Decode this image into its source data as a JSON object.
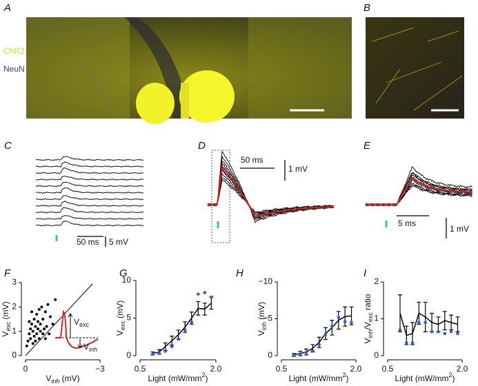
{
  "panels": [
    "A",
    "B",
    "C",
    "D",
    "E"
  ],
  "image_labels": [
    "ChR2",
    "NeuN"
  ],
  "scale_bars": {
    "C": [
      "50 ms",
      "5 mV"
    ],
    "D": [
      "50 ms",
      "1 mV"
    ],
    "E": [
      "5 ms",
      "1 mV"
    ]
  },
  "chart_data": [
    {
      "type": "scatter",
      "label": "F",
      "xlabel": [
        {
          "text": "V"
        },
        {
          "text": "inh",
          "sub": true
        },
        {
          "text": " (mV)"
        }
      ],
      "ylabel": [
        {
          "text": "V"
        },
        {
          "text": "exc",
          "sub": true
        },
        {
          "text": " (mV)"
        }
      ],
      "xlim": [
        0,
        -3
      ],
      "ylim": [
        0,
        3
      ],
      "xticks": [
        0,
        {
          "value": -3,
          "label": "−3"
        }
      ],
      "yticks": [
        0,
        1,
        2,
        3
      ],
      "color": "#000000",
      "x": [
        -0.1,
        -0.15,
        -0.2,
        -0.2,
        -0.25,
        -0.3,
        -0.3,
        -0.35,
        -0.35,
        -0.4,
        -0.4,
        -0.45,
        -0.45,
        -0.5,
        -0.5,
        -0.55,
        -0.6,
        -0.6,
        -0.65,
        -0.7,
        -0.7,
        -0.75,
        -0.8,
        -0.85,
        -0.9,
        -0.95,
        -1.0,
        -1.1,
        -1.2,
        -0.25,
        -0.55,
        -0.15,
        -0.05,
        -0.8
      ],
      "values": [
        0.6,
        0.9,
        1.1,
        0.7,
        1.3,
        0.5,
        1.0,
        1.5,
        0.8,
        1.2,
        0.6,
        1.7,
        0.9,
        1.1,
        1.4,
        0.7,
        1.0,
        1.3,
        2.0,
        1.5,
        0.9,
        1.1,
        1.8,
        1.2,
        2.1,
        0.9,
        1.6,
        1.3,
        2.3,
        1.8,
        1.9,
        1.4,
        0.4,
        0.7
      ],
      "annotations": [
        [
          {
            "text": "V"
          },
          {
            "text": "exc",
            "sub": true
          }
        ],
        [
          {
            "text": "V"
          },
          {
            "text": "inh",
            "sub": true
          }
        ]
      ]
    },
    {
      "type": "line",
      "label": "G",
      "xlabel": [
        {
          "text": "Light (mW/mm"
        },
        {
          "text": "2",
          "sup": true
        },
        {
          "text": ")"
        }
      ],
      "ylabel": [
        {
          "text": "V"
        },
        {
          "text": "exc",
          "sub": true
        },
        {
          "text": " (mV)"
        }
      ],
      "xlim": [
        0.5,
        2
      ],
      "ylim": [
        0,
        10
      ],
      "xticks": [
        0.5,
        {
          "value": 2,
          "label": "2.0"
        }
      ],
      "yticks": [
        0,
        5,
        10
      ],
      "x": [
        0.75,
        0.88,
        1.0,
        1.13,
        1.26,
        1.39,
        1.52,
        1.65,
        1.78,
        1.91
      ],
      "series": [
        {
          "color": "#000000",
          "style": "line",
          "values": [
            0.3,
            0.5,
            1.2,
            2.0,
            2.8,
            3.8,
            5.0,
            6.3,
            6.2,
            7.0
          ],
          "errors": [
            0.2,
            0.3,
            0.5,
            0.6,
            0.6,
            0.7,
            0.8,
            0.9,
            0.8,
            0.8
          ]
        },
        {
          "color": "#2f5fd6",
          "style": "markers",
          "values": [
            0.2,
            0.3,
            0.6,
            1.2,
            2.2,
            3.4,
            4.5,
            8.2,
            8.4,
            7.8
          ]
        }
      ]
    },
    {
      "type": "line",
      "label": "H",
      "xlabel": [
        {
          "text": "Light (mW/mm"
        },
        {
          "text": "2",
          "sup": true
        },
        {
          "text": ")"
        }
      ],
      "ylabel": [
        {
          "text": "V"
        },
        {
          "text": "inh",
          "sub": true
        },
        {
          "text": " (mV)"
        }
      ],
      "xlim": [
        0.5,
        2
      ],
      "ylim": [
        0,
        -10
      ],
      "xticks": [
        0.5,
        {
          "value": 2,
          "label": "2.0"
        }
      ],
      "yticks": [
        0,
        {
          "value": -5,
          "label": "−5"
        },
        {
          "value": -10,
          "label": "−10"
        }
      ],
      "x": [
        0.75,
        0.88,
        1.0,
        1.13,
        1.26,
        1.39,
        1.52,
        1.65,
        1.78,
        1.91
      ],
      "series": [
        {
          "color": "#000000",
          "style": "line",
          "values": [
            -0.1,
            -0.3,
            -0.5,
            -1.0,
            -1.8,
            -3.0,
            -3.8,
            -4.8,
            -5.3,
            -5.4
          ],
          "errors": [
            0.2,
            0.3,
            0.4,
            0.5,
            0.7,
            0.8,
            1.0,
            1.2,
            1.3,
            1.2
          ]
        },
        {
          "color": "#2f5fd6",
          "style": "markers",
          "values": [
            -0.05,
            -0.2,
            -0.4,
            -0.7,
            -1.5,
            -2.9,
            -4.0,
            -5.2,
            -4.6,
            -4.5
          ]
        }
      ]
    },
    {
      "type": "line",
      "label": "I",
      "xlabel": [
        {
          "text": "Light (mW/mm"
        },
        {
          "text": "2",
          "sup": true
        },
        {
          "text": ")"
        }
      ],
      "ylabel": [
        {
          "text": "V"
        },
        {
          "text": "inh",
          "sub": true
        },
        {
          "text": "/V"
        },
        {
          "text": "exc",
          "sub": true
        },
        {
          "text": " ratio"
        }
      ],
      "xlim": [
        0.5,
        2
      ],
      "ylim": [
        0,
        2
      ],
      "xticks": [
        0.5,
        {
          "value": 2,
          "label": "2.0"
        }
      ],
      "yticks": [
        0,
        1,
        2
      ],
      "x": [
        0.75,
        0.88,
        1.0,
        1.13,
        1.26,
        1.39,
        1.52,
        1.65,
        1.78,
        1.91
      ],
      "series": [
        {
          "color": "#000000",
          "style": "line",
          "values": [
            1.15,
            0.55,
            0.6,
            1.15,
            1.05,
            0.9,
            0.85,
            0.95,
            0.9,
            0.85
          ],
          "errors": [
            0.5,
            0.25,
            0.3,
            0.3,
            0.4,
            0.25,
            0.2,
            0.25,
            0.2,
            0.2
          ]
        },
        {
          "color": "#2f5fd6",
          "style": "markers",
          "values": [
            0.7,
            0.35,
            0.35,
            0.9,
            0.9,
            0.65,
            0.65,
            0.6,
            0.65,
            0.6
          ]
        }
      ]
    }
  ]
}
